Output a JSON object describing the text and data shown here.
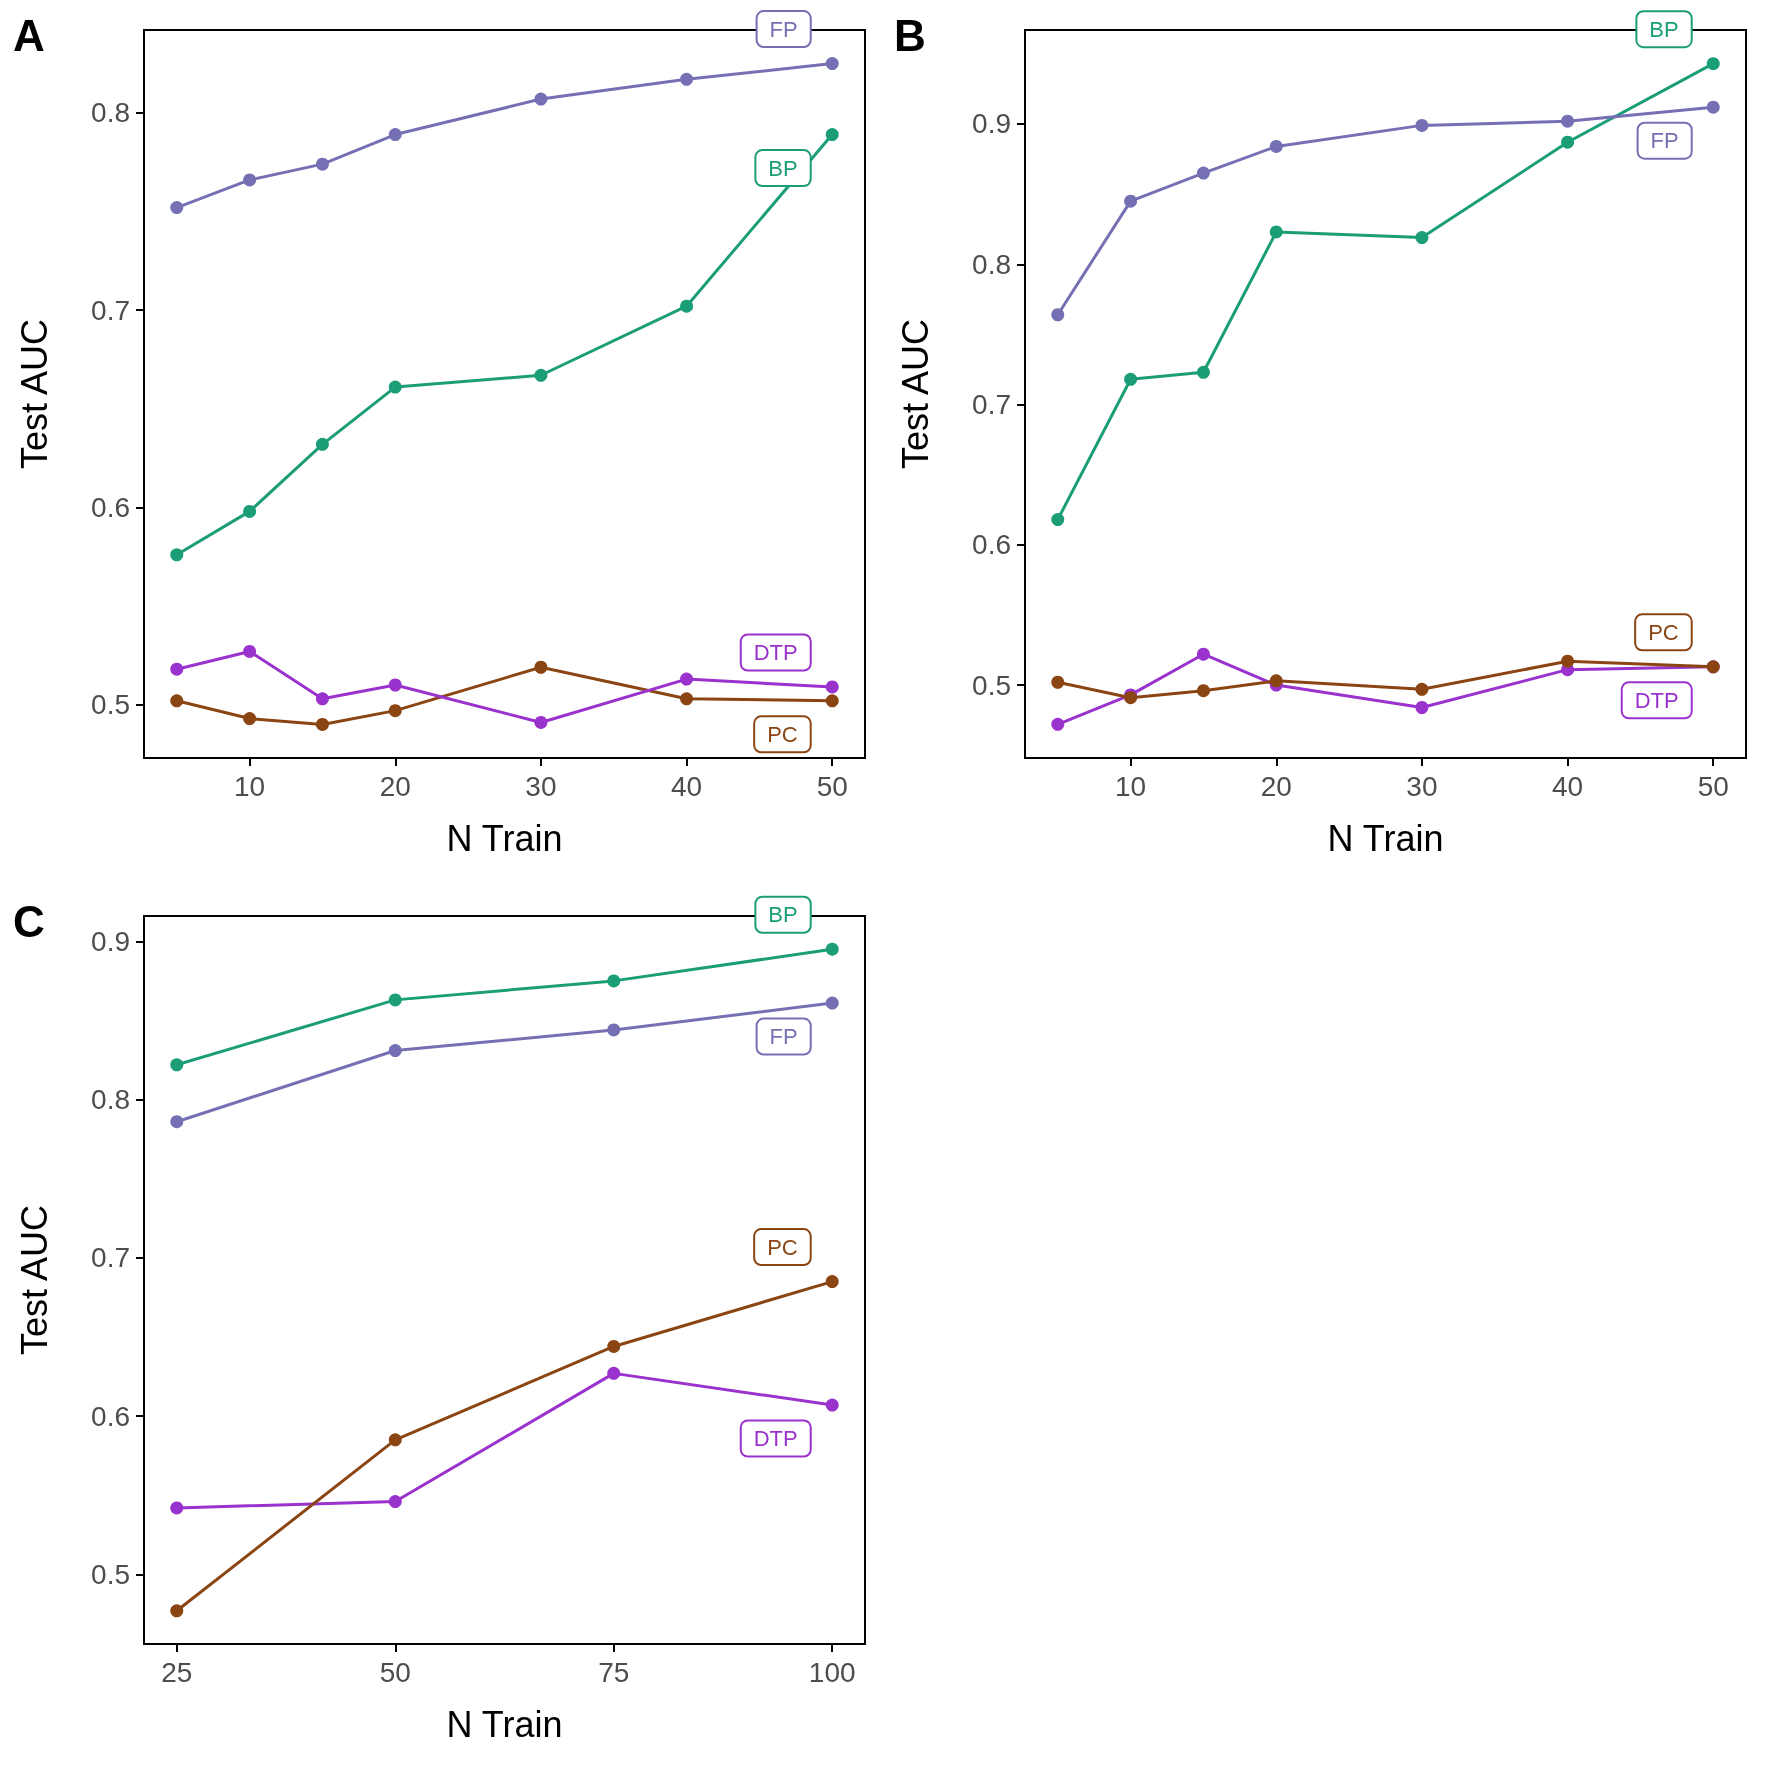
{
  "chart_data": [
    {
      "type": "line",
      "title": "A",
      "xlabel": "N Train",
      "ylabel": "Test AUC",
      "x": [
        5,
        10,
        15,
        20,
        30,
        40,
        50
      ],
      "xlim": [
        2.75,
        52.25
      ],
      "xticks": [
        10,
        20,
        30,
        40,
        50
      ],
      "ylim": [
        0.473,
        0.842
      ],
      "yticks": [
        0.5,
        0.6,
        0.7,
        0.8
      ],
      "grid": false,
      "legend": false,
      "marker": "circle",
      "line_style": "solid",
      "series": [
        {
          "name": "FP",
          "color": "#7570b3",
          "values": [
            0.752,
            0.766,
            0.774,
            0.789,
            0.807,
            0.817,
            0.825
          ]
        },
        {
          "name": "BP",
          "color": "#1b9e77",
          "values": [
            0.576,
            0.598,
            0.632,
            0.661,
            0.667,
            0.702,
            0.789
          ]
        },
        {
          "name": "DTP",
          "color": "#9a32cd",
          "values": [
            0.518,
            0.527,
            0.503,
            0.51,
            0.491,
            0.513,
            0.509
          ]
        },
        {
          "name": "PC",
          "color": "#8b4513",
          "values": [
            0.502,
            0.493,
            0.49,
            0.497,
            0.519,
            0.503,
            0.502
          ]
        }
      ]
    },
    {
      "type": "line",
      "title": "B",
      "xlabel": "N Train",
      "ylabel": "Test AUC",
      "x": [
        5,
        10,
        15,
        20,
        30,
        40,
        50
      ],
      "xlim": [
        2.75,
        52.25
      ],
      "xticks": [
        10,
        20,
        30,
        40,
        50
      ],
      "ylim": [
        0.448,
        0.967
      ],
      "yticks": [
        0.5,
        0.6,
        0.7,
        0.8,
        0.9
      ],
      "grid": false,
      "legend": false,
      "marker": "circle",
      "line_style": "solid",
      "series": [
        {
          "name": "FP",
          "color": "#7570b3",
          "values": [
            0.764,
            0.845,
            0.865,
            0.884,
            0.899,
            0.902,
            0.912
          ]
        },
        {
          "name": "BP",
          "color": "#1b9e77",
          "values": [
            0.618,
            0.718,
            0.723,
            0.823,
            0.819,
            0.887,
            0.943
          ]
        },
        {
          "name": "PC",
          "color": "#8b4513",
          "values": [
            0.502,
            0.491,
            0.496,
            0.503,
            0.497,
            0.517,
            0.513
          ]
        },
        {
          "name": "DTP",
          "color": "#9a32cd",
          "values": [
            0.472,
            0.493,
            0.522,
            0.5,
            0.484,
            0.511,
            0.513
          ]
        }
      ]
    },
    {
      "type": "line",
      "title": "C",
      "xlabel": "N Train",
      "ylabel": "Test AUC",
      "x": [
        25,
        50,
        75,
        100
      ],
      "xlim": [
        21.25,
        103.75
      ],
      "xticks": [
        25,
        50,
        75,
        100
      ],
      "ylim": [
        0.456,
        0.916
      ],
      "yticks": [
        0.5,
        0.6,
        0.7,
        0.8,
        0.9
      ],
      "grid": false,
      "legend": false,
      "marker": "circle",
      "line_style": "solid",
      "series": [
        {
          "name": "BP",
          "color": "#1b9e77",
          "values": [
            0.822,
            0.863,
            0.875,
            0.895
          ]
        },
        {
          "name": "FP",
          "color": "#7570b3",
          "values": [
            0.786,
            0.831,
            0.844,
            0.861
          ]
        },
        {
          "name": "PC",
          "color": "#8b4513",
          "values": [
            0.477,
            0.585,
            0.644,
            0.685
          ]
        },
        {
          "name": "DTP",
          "color": "#9a32cd",
          "values": [
            0.542,
            0.546,
            0.627,
            0.607
          ]
        }
      ]
    }
  ]
}
